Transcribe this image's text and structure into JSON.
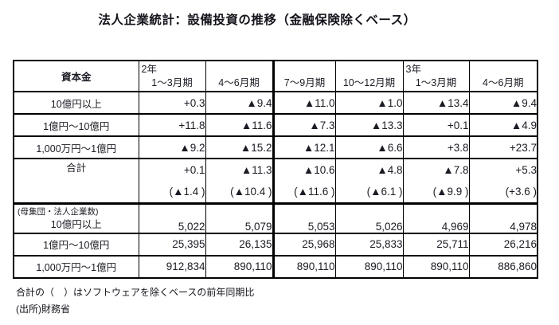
{
  "title": "法人企業統計：設備投資の推移（金融保険除くベース）",
  "table": {
    "header": {
      "capital_label": "資本金",
      "columns": [
        {
          "year": "2年",
          "period": "1〜3月期"
        },
        {
          "year": "",
          "period": "4〜6月期"
        },
        {
          "year": "",
          "period": "7〜9月期"
        },
        {
          "year": "",
          "period": "10〜12月期"
        },
        {
          "year": "3年",
          "period": "1〜3月期"
        },
        {
          "year": "",
          "period": "4〜6月期"
        }
      ]
    },
    "investment_rows": [
      {
        "label": "10億円以上",
        "values": [
          "+0.3",
          "▲9.4",
          "▲11.0",
          "▲1.0",
          "▲13.4",
          "▲9.4"
        ]
      },
      {
        "label": "1億円〜10億円",
        "values": [
          "+11.8",
          "▲11.6",
          "▲7.3",
          "▲13.3",
          "+0.1",
          "▲4.9"
        ]
      },
      {
        "label": "1,000万円〜1億円",
        "values": [
          "▲9.2",
          "▲15.2",
          "▲12.1",
          "▲6.6",
          "+3.8",
          "+23.7"
        ]
      },
      {
        "label": "合計",
        "values": [
          "+0.1",
          "▲11.3",
          "▲10.6",
          "▲4.8",
          "▲7.8",
          "+5.3"
        ],
        "sub_values": [
          "(▲1.4 )",
          "(▲10.4 )",
          "(▲11.6 )",
          "(▲6.1 )",
          "(▲9.9 )",
          "(+3.6 )"
        ]
      }
    ],
    "population_section_label": "(母集団・法人企業数)",
    "population_rows": [
      {
        "label": "10億円以上",
        "values": [
          "5,022",
          "5,079",
          "5,053",
          "5,026",
          "4,969",
          "4,978"
        ]
      },
      {
        "label": "1億円〜10億円",
        "values": [
          "25,395",
          "26,135",
          "25,968",
          "25,833",
          "25,711",
          "26,216"
        ]
      },
      {
        "label": "1,000万円〜1億円",
        "values": [
          "912,834",
          "890,110",
          "890,110",
          "890,110",
          "890,110",
          "886,860"
        ]
      }
    ]
  },
  "footnotes": [
    "合計の（　）はソフトウェアを除くベースの前年同期比",
    "(出所)財務省"
  ],
  "colors": {
    "border": "#000000",
    "text": "#1b1b24",
    "background": "#ffffff"
  }
}
